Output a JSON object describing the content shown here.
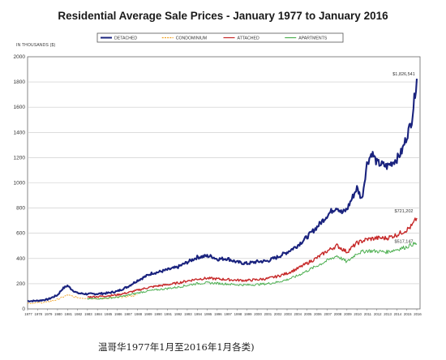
{
  "caption": "温哥华1977年1月至2016年1月各类)",
  "chart_data": {
    "type": "line",
    "title": "Residential Average Sale Prices  -  January 1977 to January 2016",
    "ylabel": "IN THOUSANDS ($)",
    "xlabel": "",
    "ylim": [
      0,
      2000
    ],
    "y_ticks": [
      0,
      200,
      400,
      600,
      800,
      1000,
      1200,
      1400,
      1600,
      1800,
      2000
    ],
    "x_ticks": [
      "1977",
      "1978",
      "1979",
      "1980",
      "1981",
      "1982",
      "1983",
      "1984",
      "1985",
      "1986",
      "1987",
      "1988",
      "1989",
      "1990",
      "1991",
      "1992",
      "1993",
      "1994",
      "1995",
      "1996",
      "1997",
      "1998",
      "1999",
      "2000",
      "2001",
      "2002",
      "2003",
      "2004",
      "2005",
      "2006",
      "2007",
      "2008",
      "2009",
      "2010",
      "2011",
      "2012",
      "2013",
      "2014",
      "2015",
      "2016"
    ],
    "xlim": [
      1977,
      2016
    ],
    "grid": true,
    "legend_position": "top",
    "series": [
      {
        "name": "DETACHED",
        "color": "#1a237e",
        "x": [
          1977,
          1978,
          1979,
          1980,
          1980.5,
          1981,
          1981.5,
          1982,
          1983,
          1984,
          1985,
          1986,
          1987,
          1988,
          1989,
          1989.5,
          1990,
          1991,
          1992,
          1993,
          1994,
          1995,
          1995.5,
          1996,
          1997,
          1998,
          1999,
          2000,
          2001,
          2002,
          2003,
          2004,
          2005,
          2006,
          2007,
          2007.5,
          2008,
          2008.5,
          2009,
          2010,
          2010.5,
          2011,
          2011.5,
          2012,
          2013,
          2014,
          2014.5,
          2015,
          2015.5,
          2016
        ],
        "y": [
          62,
          65,
          75,
          110,
          160,
          185,
          150,
          125,
          118,
          120,
          125,
          140,
          175,
          225,
          265,
          285,
          290,
          310,
          330,
          370,
          410,
          420,
          415,
          395,
          400,
          370,
          360,
          375,
          380,
          410,
          450,
          500,
          570,
          650,
          740,
          780,
          810,
          760,
          790,
          960,
          870,
          1150,
          1240,
          1160,
          1130,
          1190,
          1250,
          1370,
          1500,
          1826
        ]
      },
      {
        "name": "CONDOMINIUM",
        "color": "#f0a020",
        "x": [
          1977,
          1978,
          1979,
          1980,
          1981,
          1981.5,
          1982,
          1983,
          1984,
          1985,
          1986,
          1987,
          1988
        ],
        "y": [
          45,
          48,
          55,
          75,
          110,
          100,
          90,
          85,
          82,
          86,
          92,
          100,
          110
        ]
      },
      {
        "name": "ATTACHED",
        "color": "#c62828",
        "x": [
          1983,
          1984,
          1985,
          1986,
          1987,
          1988,
          1989,
          1990,
          1991,
          1992,
          1993,
          1994,
          1995,
          1996,
          1997,
          1998,
          1999,
          2000,
          2001,
          2002,
          2003,
          2004,
          2005,
          2006,
          2007,
          2008,
          2009,
          2010,
          2011,
          2012,
          2013,
          2014,
          2015,
          2015.5,
          2016
        ],
        "y": [
          95,
          98,
          104,
          112,
          128,
          148,
          168,
          182,
          192,
          205,
          222,
          237,
          243,
          238,
          233,
          228,
          226,
          232,
          240,
          258,
          282,
          318,
          362,
          405,
          458,
          502,
          452,
          522,
          552,
          562,
          562,
          588,
          628,
          658,
          721
        ]
      },
      {
        "name": "APARTMENTS",
        "color": "#4caf50",
        "x": [
          1983,
          1984,
          1985,
          1986,
          1987,
          1988,
          1989,
          1990,
          1991,
          1992,
          1993,
          1994,
          1995,
          1996,
          1997,
          1998,
          1999,
          2000,
          2001,
          2002,
          2003,
          2004,
          2005,
          2006,
          2007,
          2008,
          2009,
          2010,
          2011,
          2012,
          2013,
          2014,
          2015,
          2015.5,
          2016
        ],
        "y": [
          80,
          82,
          86,
          92,
          108,
          126,
          142,
          152,
          162,
          172,
          187,
          202,
          207,
          203,
          198,
          192,
          190,
          194,
          200,
          212,
          232,
          262,
          302,
          342,
          382,
          422,
          372,
          442,
          462,
          457,
          452,
          472,
          492,
          512,
          517
        ]
      }
    ],
    "annotations": [
      {
        "text": "$1,826,541",
        "x": 2016,
        "y": 1826
      },
      {
        "text": "$721,202",
        "x": 2016,
        "y": 721
      },
      {
        "text": "$517,147",
        "x": 2016,
        "y": 517
      }
    ]
  }
}
